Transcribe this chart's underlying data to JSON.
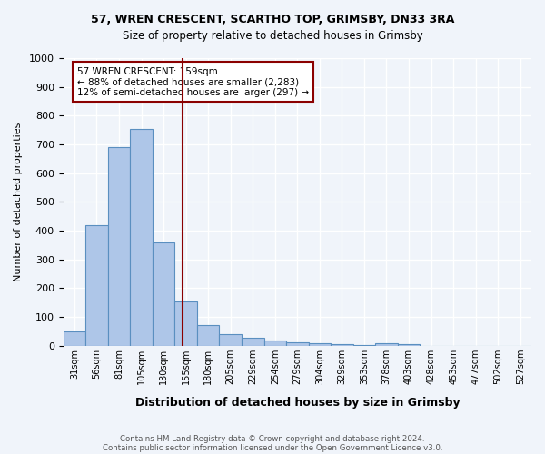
{
  "title1": "57, WREN CRESCENT, SCARTHO TOP, GRIMSBY, DN33 3RA",
  "title2": "Size of property relative to detached houses in Grimsby",
  "xlabel": "Distribution of detached houses by size in Grimsby",
  "ylabel": "Number of detached properties",
  "bin_labels": [
    "31sqm",
    "56sqm",
    "81sqm",
    "105sqm",
    "130sqm",
    "155sqm",
    "180sqm",
    "205sqm",
    "229sqm",
    "254sqm",
    "279sqm",
    "304sqm",
    "329sqm",
    "353sqm",
    "378sqm",
    "403sqm",
    "428sqm",
    "453sqm",
    "477sqm",
    "502sqm",
    "527sqm"
  ],
  "bar_values": [
    50,
    420,
    690,
    755,
    360,
    155,
    73,
    40,
    27,
    18,
    12,
    8,
    5,
    3,
    8,
    6,
    0,
    0,
    0,
    0,
    0
  ],
  "bar_color": "#aec6e8",
  "bar_edge_color": "#5a8fc0",
  "vline_x": 5.36,
  "vline_color": "#8b0000",
  "annotation_text": "57 WREN CRESCENT: 159sqm\n← 88% of detached houses are smaller (2,283)\n12% of semi-detached houses are larger (297) →",
  "annotation_box_color": "#ffffff",
  "annotation_box_edge": "#8b0000",
  "ylim": [
    0,
    1000
  ],
  "yticks": [
    0,
    100,
    200,
    300,
    400,
    500,
    600,
    700,
    800,
    900,
    1000
  ],
  "footer1": "Contains HM Land Registry data © Crown copyright and database right 2024.",
  "footer2": "Contains public sector information licensed under the Open Government Licence v3.0.",
  "bg_color": "#f0f4fa",
  "grid_color": "#ffffff"
}
